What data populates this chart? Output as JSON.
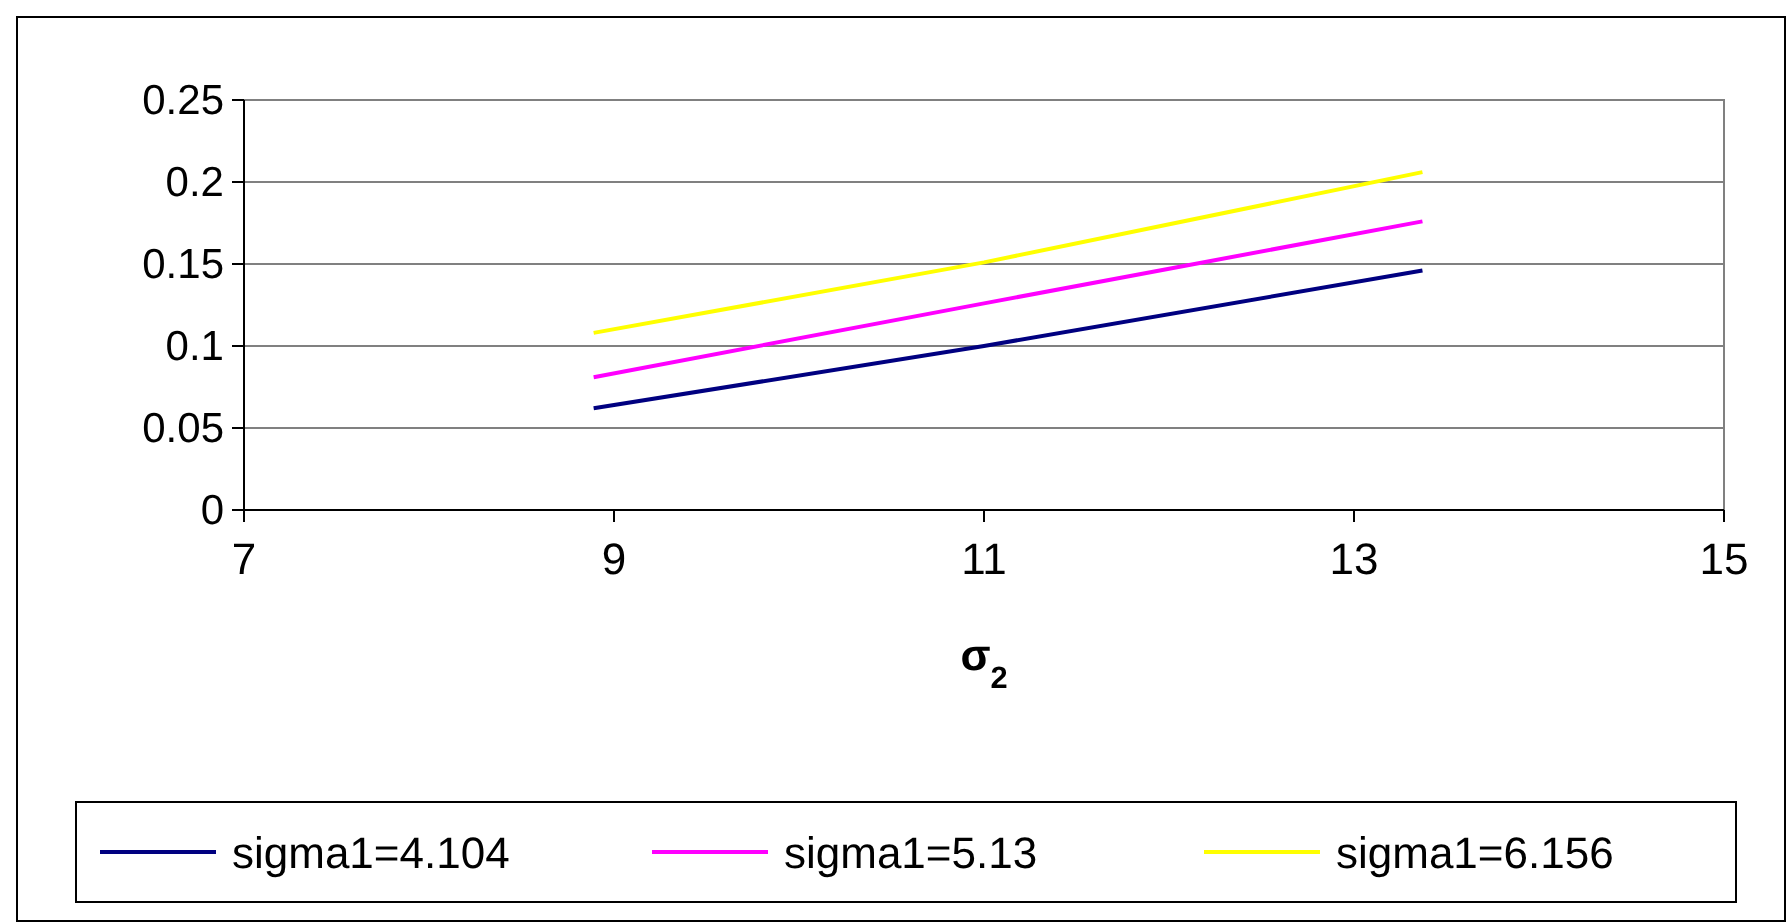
{
  "chart_data": {
    "type": "line",
    "xlabel": "σ$_{2}$",
    "xlim": [
      7,
      15
    ],
    "xticks": [
      7,
      9,
      11,
      13,
      15
    ],
    "ylim": [
      0,
      0.25
    ],
    "yticks": [
      0,
      0.05,
      0.1,
      0.15,
      0.2,
      0.25
    ],
    "grid": "y",
    "legend": "bottom",
    "marker": "none",
    "line_style": "solid",
    "series": [
      {
        "name": "sigma1=4.104",
        "color": "#000080",
        "x": [
          8.89,
          11,
          13.37
        ],
        "values": [
          0.062,
          0.1,
          0.146
        ]
      },
      {
        "name": "sigma1=5.13",
        "color": "#ff00ff",
        "x": [
          8.89,
          11,
          13.37
        ],
        "values": [
          0.081,
          0.126,
          0.176
        ]
      },
      {
        "name": "sigma1=6.156",
        "color": "#ffff00",
        "x": [
          8.89,
          11,
          13.37
        ],
        "values": [
          0.108,
          0.151,
          0.206
        ]
      }
    ]
  }
}
